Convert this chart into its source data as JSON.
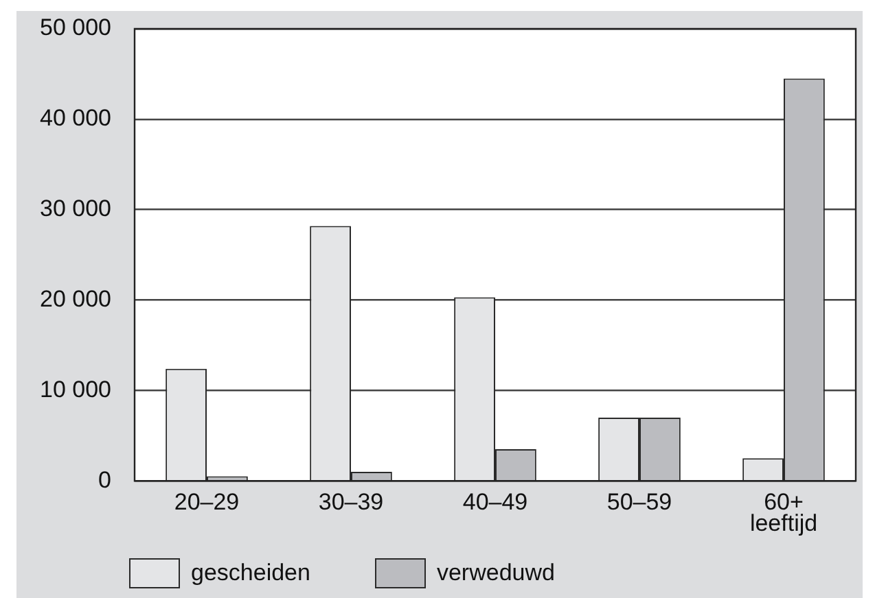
{
  "chart_data": {
    "type": "bar",
    "xlabel": "leeftijd",
    "categories": [
      "20–29",
      "30–39",
      "40–49",
      "50–59",
      "60+"
    ],
    "series": [
      {
        "name": "gescheiden",
        "color": "#e4e5e7",
        "values": [
          12400,
          28200,
          20300,
          7000,
          2500
        ]
      },
      {
        "name": "verweduwd",
        "color": "#bbbcc0",
        "values": [
          500,
          1000,
          3500,
          7000,
          44500
        ]
      }
    ],
    "ylim": [
      0,
      50000
    ],
    "yticks": [
      0,
      {
        "value": 10000,
        "label": "10 000"
      },
      {
        "value": 20000,
        "label": "20 000"
      },
      {
        "value": 30000,
        "label": "30 000"
      },
      {
        "value": 40000,
        "label": "40 000"
      },
      {
        "value": 50000,
        "label": "50 000"
      }
    ],
    "grid": "y",
    "legend": "bottom"
  }
}
